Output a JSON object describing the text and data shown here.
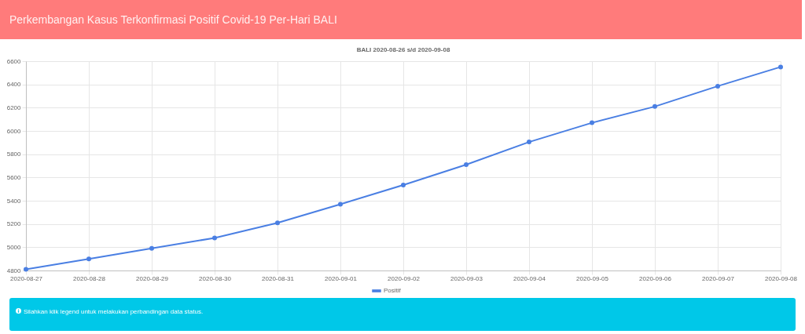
{
  "chart_data": {
    "type": "line",
    "title": "Perkembangan Kasus Terkonfirmasi Positif Covid-19 Per-Hari BALI",
    "subtitle": "BALI 2020-08-26 s/d 2020-09-08",
    "categories": [
      "2020-08-27",
      "2020-08-28",
      "2020-08-29",
      "2020-08-30",
      "2020-08-31",
      "2020-09-01",
      "2020-09-02",
      "2020-09-03",
      "2020-09-04",
      "2020-09-05",
      "2020-09-06",
      "2020-09-07",
      "2020-09-08"
    ],
    "series": [
      {
        "name": "Positif",
        "color": "#4a7fe3",
        "values": [
          4810,
          4900,
          4990,
          5080,
          5210,
          5370,
          5535,
          5710,
          5905,
          6070,
          6210,
          6385,
          6550
        ]
      }
    ],
    "ylim": [
      4800,
      6600
    ],
    "yticks": [
      4800,
      5000,
      5200,
      5400,
      5600,
      5800,
      6000,
      6200,
      6400,
      6600
    ],
    "grid": true,
    "legend": "bottom",
    "marker": "circle",
    "line_style": "solid",
    "annotations": [
      "Silahkan klik legend untuk melakukan perbandingan data status."
    ]
  }
}
